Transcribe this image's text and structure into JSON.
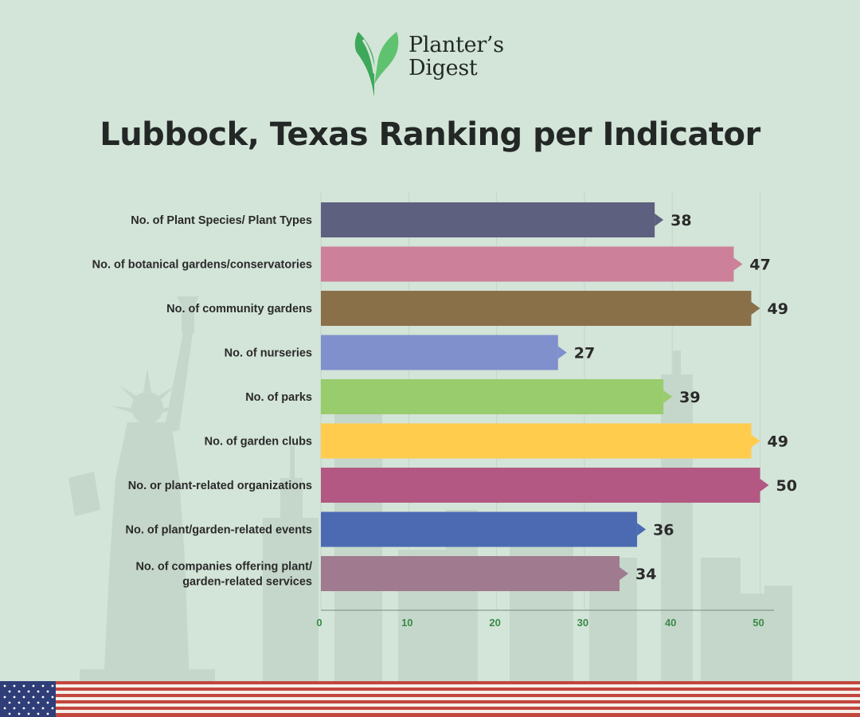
{
  "brand": {
    "name_line1": "Planter’s",
    "name_line2": "Digest"
  },
  "colors": {
    "background": "#d3e4d8",
    "tick_label": "#3a8a4a"
  },
  "chart_data": {
    "type": "bar",
    "orientation": "horizontal",
    "title": "Lubbock, Texas Ranking per Indicator",
    "xlabel": "",
    "ylabel": "",
    "xlim": [
      0,
      52
    ],
    "x_ticks": [
      0,
      10,
      20,
      30,
      40,
      50
    ],
    "grid": true,
    "categories": [
      [
        "No. of Plant Species/ Plant Types"
      ],
      [
        "No. of botanical gardens/conservatories"
      ],
      [
        "No. of community gardens"
      ],
      [
        "No. of nurseries"
      ],
      [
        "No. of parks"
      ],
      [
        "No. of garden clubs"
      ],
      [
        "No. or plant-related organizations"
      ],
      [
        "No. of plant/garden-related events"
      ],
      [
        "No. of companies offering plant/",
        "garden-related services"
      ]
    ],
    "values": [
      38,
      47,
      49,
      27,
      39,
      49,
      50,
      36,
      34
    ],
    "bar_colors": [
      "#5d607f",
      "#cc8099",
      "#8a7049",
      "#8090cc",
      "#99cc6c",
      "#ffcc4e",
      "#b25882",
      "#4b6ab2",
      "#a07a8e"
    ]
  }
}
